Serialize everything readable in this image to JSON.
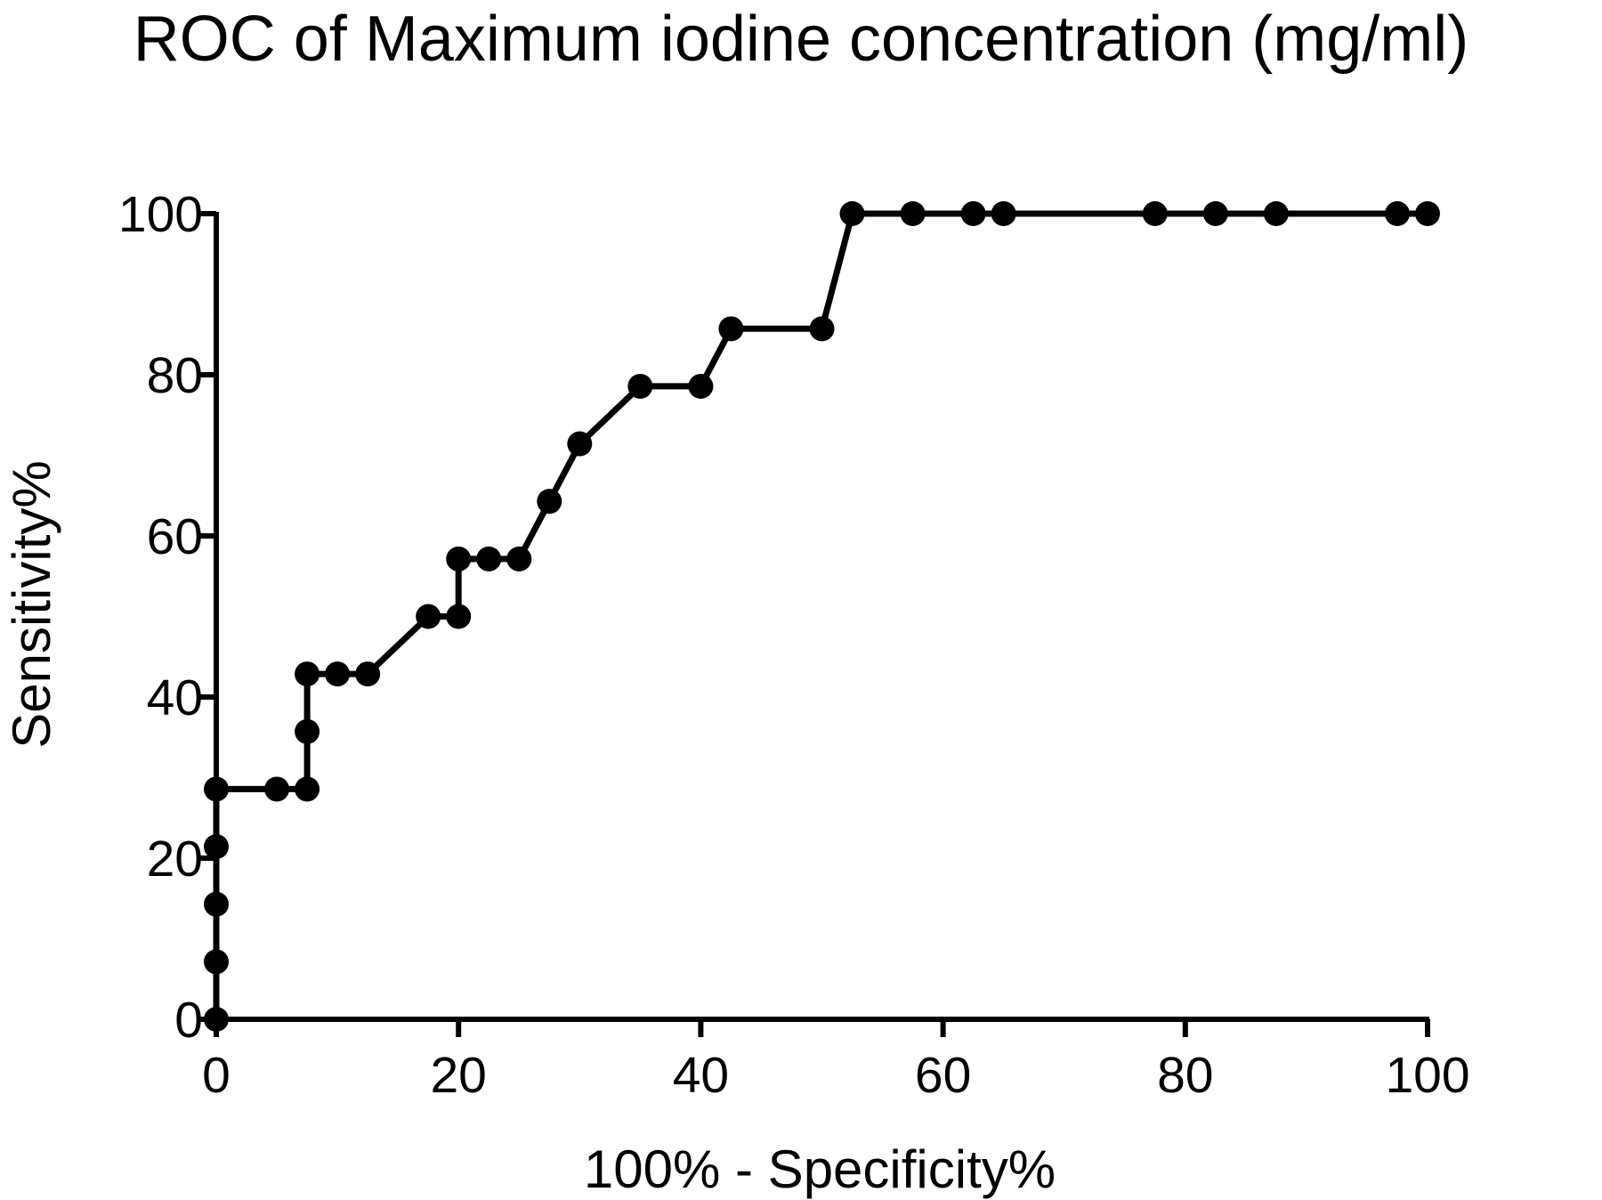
{
  "chart_data": {
    "type": "line",
    "title": "ROC of Maximum iodine concentration (mg/ml)",
    "xlabel": "100% - Specificity%",
    "ylabel": "Sensitivity%",
    "xlim": [
      0,
      100
    ],
    "ylim": [
      0,
      100
    ],
    "xticks": [
      "0",
      "20",
      "40",
      "60",
      "80",
      "100"
    ],
    "yticks": [
      "0",
      "20",
      "40",
      "60",
      "80",
      "100"
    ],
    "grid": false,
    "legend": "none",
    "color": "#000000",
    "series": [
      {
        "x": [
          0,
          0,
          0,
          0,
          0,
          5,
          7.5,
          7.5,
          7.5,
          10,
          12.5,
          17.5,
          20,
          20,
          22.5,
          25,
          27.5,
          30,
          35,
          40,
          42.5,
          50,
          52.5,
          57.5,
          62.5,
          65,
          77.5,
          82.5,
          87.5,
          97.5,
          100
        ],
        "y": [
          0,
          7.14,
          14.29,
          21.43,
          28.57,
          28.57,
          28.57,
          35.71,
          42.86,
          42.86,
          42.86,
          50,
          50,
          57.14,
          57.14,
          57.14,
          64.29,
          71.43,
          78.57,
          78.57,
          85.71,
          85.71,
          100,
          100,
          100,
          100,
          100,
          100,
          100,
          100,
          100
        ]
      }
    ]
  }
}
